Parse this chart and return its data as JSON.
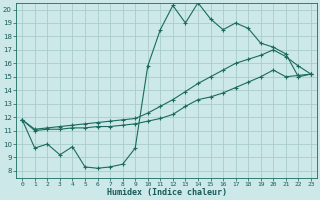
{
  "xlabel": "Humidex (Indice chaleur)",
  "background_color": "#cce8e8",
  "grid_color": "#aacccc",
  "line_color": "#1a6b5e",
  "xlim": [
    -0.5,
    23.5
  ],
  "ylim": [
    7.5,
    20.5
  ],
  "x_ticks": [
    0,
    1,
    2,
    3,
    4,
    5,
    6,
    7,
    8,
    9,
    10,
    11,
    12,
    13,
    14,
    15,
    16,
    17,
    18,
    19,
    20,
    21,
    22,
    23
  ],
  "y_ticks": [
    8,
    9,
    10,
    11,
    12,
    13,
    14,
    15,
    16,
    17,
    18,
    19,
    20
  ],
  "series1": [
    11.8,
    9.7,
    10.0,
    9.2,
    9.8,
    8.3,
    8.2,
    8.3,
    8.5,
    9.7,
    15.8,
    18.5,
    20.3,
    19.0,
    20.5,
    19.3,
    18.5,
    19.0,
    18.6,
    17.5,
    17.2,
    16.7,
    15.0,
    15.2
  ],
  "series2": [
    11.8,
    11.0,
    11.1,
    11.1,
    11.2,
    11.2,
    11.3,
    11.3,
    11.4,
    11.5,
    11.7,
    11.9,
    12.2,
    12.8,
    13.3,
    13.5,
    13.8,
    14.2,
    14.6,
    15.0,
    15.5,
    15.0,
    15.1,
    15.2
  ],
  "series3": [
    11.8,
    11.1,
    11.2,
    11.3,
    11.4,
    11.5,
    11.6,
    11.7,
    11.8,
    11.9,
    12.3,
    12.8,
    13.3,
    13.9,
    14.5,
    15.0,
    15.5,
    16.0,
    16.3,
    16.6,
    17.0,
    16.5,
    15.8,
    15.2
  ]
}
